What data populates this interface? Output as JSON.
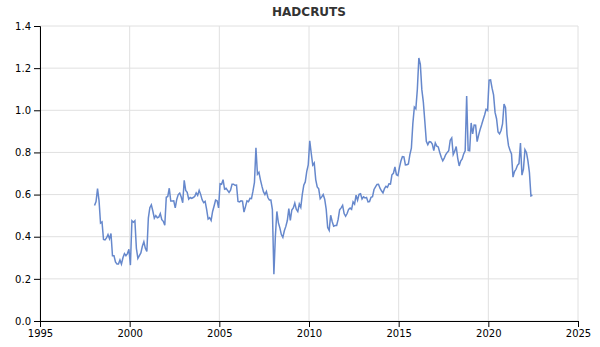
{
  "chart_data": {
    "type": "line",
    "title": "HADCRUTS",
    "color": "#6688cc",
    "grid": true,
    "xlim": [
      1995,
      2025
    ],
    "ylim": [
      0.0,
      1.4
    ],
    "xticks": [
      1995,
      2000,
      2005,
      2010,
      2015,
      2020,
      2025
    ],
    "yticks": [
      {
        "value": 0.0,
        "label": "0.0"
      },
      0.2,
      0.4,
      0.6,
      0.8,
      {
        "value": 1.0,
        "label": "1.0"
      },
      1.2,
      1.4
    ],
    "x": [
      1998.0417,
      1998.125,
      1998.2083,
      1998.2917,
      1998.375,
      1998.4583,
      1998.5417,
      1998.625,
      1998.7083,
      1998.7917,
      1998.875,
      1998.9583,
      1999.0417,
      1999.125,
      1999.2083,
      1999.2917,
      1999.375,
      1999.4583,
      1999.5417,
      1999.625,
      1999.7083,
      1999.7917,
      1999.875,
      1999.9583,
      2000.0417,
      2000.125,
      2000.2083,
      2000.2917,
      2000.375,
      2000.4583,
      2000.5417,
      2000.625,
      2000.7083,
      2000.7917,
      2000.875,
      2000.9583,
      2001.0417,
      2001.125,
      2001.2083,
      2001.2917,
      2001.375,
      2001.4583,
      2001.5417,
      2001.625,
      2001.7083,
      2001.7917,
      2001.875,
      2001.9583,
      2002.0417,
      2002.125,
      2002.2083,
      2002.2917,
      2002.375,
      2002.4583,
      2002.5417,
      2002.625,
      2002.7083,
      2002.7917,
      2002.875,
      2002.9583,
      2003.0417,
      2003.125,
      2003.2083,
      2003.2917,
      2003.375,
      2003.4583,
      2003.5417,
      2003.625,
      2003.7083,
      2003.7917,
      2003.875,
      2003.9583,
      2004.0417,
      2004.125,
      2004.2083,
      2004.2917,
      2004.375,
      2004.4583,
      2004.5417,
      2004.625,
      2004.7083,
      2004.7917,
      2004.875,
      2004.9583,
      2005.0417,
      2005.125,
      2005.2083,
      2005.2917,
      2005.375,
      2005.4583,
      2005.5417,
      2005.625,
      2005.7083,
      2005.7917,
      2005.875,
      2005.9583,
      2006.0417,
      2006.125,
      2006.2083,
      2006.2917,
      2006.375,
      2006.4583,
      2006.5417,
      2006.625,
      2006.7083,
      2006.7917,
      2006.875,
      2006.9583,
      2007.0417,
      2007.125,
      2007.2083,
      2007.2917,
      2007.375,
      2007.4583,
      2007.5417,
      2007.625,
      2007.7083,
      2007.7917,
      2007.875,
      2007.9583,
      2008.0417,
      2008.125,
      2008.2083,
      2008.2917,
      2008.375,
      2008.4583,
      2008.5417,
      2008.625,
      2008.7083,
      2008.7917,
      2008.875,
      2008.9583,
      2009.0417,
      2009.125,
      2009.2083,
      2009.2917,
      2009.375,
      2009.4583,
      2009.5417,
      2009.625,
      2009.7083,
      2009.7917,
      2009.875,
      2009.9583,
      2010.0417,
      2010.125,
      2010.2083,
      2010.2917,
      2010.375,
      2010.4583,
      2010.5417,
      2010.625,
      2010.7083,
      2010.7917,
      2010.875,
      2010.9583,
      2011.0417,
      2011.125,
      2011.2083,
      2011.2917,
      2011.375,
      2011.4583,
      2011.5417,
      2011.625,
      2011.7083,
      2011.7917,
      2011.875,
      2011.9583,
      2012.0417,
      2012.125,
      2012.2083,
      2012.2917,
      2012.375,
      2012.4583,
      2012.5417,
      2012.625,
      2012.7083,
      2012.7917,
      2012.875,
      2012.9583,
      2013.0417,
      2013.125,
      2013.2083,
      2013.2917,
      2013.375,
      2013.4583,
      2013.5417,
      2013.625,
      2013.7083,
      2013.7917,
      2013.875,
      2013.9583,
      2014.0417,
      2014.125,
      2014.2083,
      2014.2917,
      2014.375,
      2014.4583,
      2014.5417,
      2014.625,
      2014.7083,
      2014.7917,
      2014.875,
      2014.9583,
      2015.0417,
      2015.125,
      2015.2083,
      2015.2917,
      2015.375,
      2015.4583,
      2015.5417,
      2015.625,
      2015.7083,
      2015.7917,
      2015.875,
      2015.9583,
      2016.0417,
      2016.125,
      2016.2083,
      2016.2917,
      2016.375,
      2016.4583,
      2016.5417,
      2016.625,
      2016.7083,
      2016.7917,
      2016.875,
      2016.9583,
      2017.0417,
      2017.125,
      2017.2083,
      2017.2917,
      2017.375,
      2017.4583,
      2017.5417,
      2017.625,
      2017.7083,
      2017.7917,
      2017.875,
      2017.9583,
      2018.0417,
      2018.125,
      2018.2083,
      2018.2917,
      2018.375,
      2018.4583,
      2018.5417,
      2018.625,
      2018.7083,
      2018.7917,
      2018.875,
      2018.9583,
      2019.0417,
      2019.125,
      2019.2083,
      2019.2917,
      2019.375,
      2019.4583,
      2019.5417,
      2019.625,
      2019.7083,
      2019.7917,
      2019.875,
      2019.9583,
      2020.0417,
      2020.125,
      2020.2083,
      2020.2917,
      2020.375,
      2020.4583,
      2020.5417,
      2020.625,
      2020.7083,
      2020.7917,
      2020.875,
      2020.9583,
      2021.0417,
      2021.125,
      2021.2083,
      2021.2917,
      2021.375,
      2021.4583,
      2021.5417,
      2021.625,
      2021.7083,
      2021.7917,
      2021.875,
      2021.9583,
      2022.0417,
      2022.125,
      2022.2083,
      2022.2917,
      2022.375,
      2022.4583
    ],
    "values": [
      0.548,
      0.567,
      0.628,
      0.571,
      0.465,
      0.47,
      0.387,
      0.385,
      0.394,
      0.41,
      0.39,
      0.415,
      0.31,
      0.31,
      0.28,
      0.27,
      0.27,
      0.29,
      0.27,
      0.3,
      0.32,
      0.31,
      0.32,
      0.34,
      0.265,
      0.476,
      0.469,
      0.476,
      0.345,
      0.297,
      0.31,
      0.323,
      0.355,
      0.376,
      0.345,
      0.33,
      0.488,
      0.538,
      0.551,
      0.522,
      0.488,
      0.5,
      0.49,
      0.493,
      0.51,
      0.481,
      0.473,
      0.455,
      0.587,
      0.591,
      0.63,
      0.569,
      0.569,
      0.57,
      0.537,
      0.577,
      0.6,
      0.607,
      0.588,
      0.561,
      0.668,
      0.62,
      0.611,
      0.578,
      0.586,
      0.582,
      0.586,
      0.591,
      0.608,
      0.596,
      0.62,
      0.601,
      0.575,
      0.562,
      0.568,
      0.53,
      0.484,
      0.49,
      0.477,
      0.52,
      0.546,
      0.574,
      0.571,
      0.537,
      0.651,
      0.649,
      0.671,
      0.626,
      0.63,
      0.62,
      0.61,
      0.621,
      0.649,
      0.649,
      0.644,
      0.645,
      0.567,
      0.565,
      0.57,
      0.569,
      0.517,
      0.543,
      0.57,
      0.566,
      0.582,
      0.581,
      0.616,
      0.658,
      0.822,
      0.697,
      0.706,
      0.67,
      0.64,
      0.614,
      0.6,
      0.615,
      0.586,
      0.574,
      0.574,
      0.529,
      0.222,
      0.402,
      0.52,
      0.467,
      0.442,
      0.41,
      0.397,
      0.428,
      0.449,
      0.477,
      0.534,
      0.477,
      0.527,
      0.537,
      0.56,
      0.53,
      0.519,
      0.555,
      0.539,
      0.6,
      0.644,
      0.66,
      0.71,
      0.741,
      0.855,
      0.796,
      0.74,
      0.75,
      0.671,
      0.636,
      0.627,
      0.58,
      0.589,
      0.6,
      0.578,
      0.531,
      0.444,
      0.43,
      0.502,
      0.472,
      0.45,
      0.453,
      0.453,
      0.482,
      0.528,
      0.537,
      0.549,
      0.51,
      0.497,
      0.51,
      0.53,
      0.536,
      0.53,
      0.565,
      0.555,
      0.597,
      0.573,
      0.601,
      0.604,
      0.579,
      0.589,
      0.584,
      0.586,
      0.565,
      0.567,
      0.587,
      0.59,
      0.624,
      0.637,
      0.648,
      0.649,
      0.63,
      0.618,
      0.608,
      0.628,
      0.639,
      0.634,
      0.651,
      0.65,
      0.694,
      0.701,
      0.731,
      0.694,
      0.69,
      0.728,
      0.759,
      0.78,
      0.779,
      0.741,
      0.742,
      0.745,
      0.79,
      0.82,
      0.938,
      1.015,
      1.007,
      1.1,
      1.248,
      1.218,
      1.098,
      1.04,
      0.948,
      0.853,
      0.837,
      0.851,
      0.85,
      0.84,
      0.809,
      0.845,
      0.83,
      0.826,
      0.8,
      0.777,
      0.76,
      0.773,
      0.79,
      0.8,
      0.808,
      0.858,
      0.869,
      0.79,
      0.806,
      0.828,
      0.773,
      0.736,
      0.759,
      0.769,
      0.793,
      0.808,
      1.068,
      0.81,
      0.808,
      0.94,
      0.888,
      0.93,
      0.929,
      0.851,
      0.882,
      0.909,
      0.931,
      0.955,
      0.978,
      1.005,
      0.999,
      1.143,
      1.144,
      1.105,
      1.073,
      0.99,
      0.96,
      0.897,
      0.888,
      0.904,
      0.935,
      1.03,
      1.012,
      0.886,
      0.832,
      0.81,
      0.793,
      0.683,
      0.709,
      0.72,
      0.739,
      0.747,
      0.844,
      0.692,
      0.721,
      0.813,
      0.8,
      0.76,
      0.704,
      0.594,
      0.597
    ]
  }
}
